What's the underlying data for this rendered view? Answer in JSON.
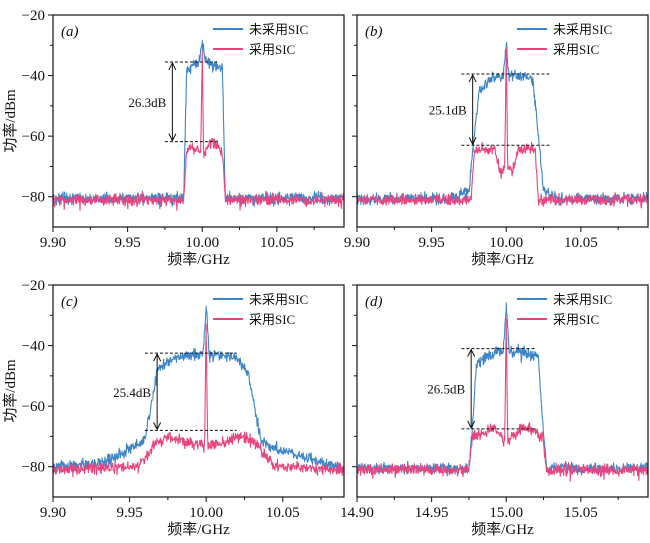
{
  "colors": {
    "without_sic": "#3d85c6",
    "with_sic": "#e8457f",
    "axis": "#111111"
  },
  "chart_data": [
    {
      "type": "line",
      "panel_label": "(a)",
      "xlabel": "频率/GHz",
      "ylabel": "功率/dBm",
      "xlim": [
        9.9,
        10.095
      ],
      "ylim": [
        -90,
        -20
      ],
      "xticks": [
        9.9,
        9.95,
        10.0,
        10.05
      ],
      "xtick_labels": [
        "9.90",
        "9.95",
        "10.00",
        "10.05"
      ],
      "yticks": [
        -20,
        -40,
        -60,
        -80
      ],
      "ytick_labels": [
        "−20",
        "−40",
        "−60",
        "−80"
      ],
      "legend_position": "top-right",
      "series": [
        {
          "name": "未采用SIC",
          "color": "#3d85c6",
          "center": 10.0,
          "floor": -80.5,
          "noise": 1.4,
          "x": [
            9.9,
            9.9875,
            9.9895,
            9.993,
            9.998,
            10.0,
            10.002,
            10.006,
            10.0135,
            10.0155,
            10.095
          ],
          "y": [
            -80.5,
            -80.5,
            -38.5,
            -37,
            -35,
            -29,
            -35,
            -36.5,
            -37.5,
            -80.5,
            -80.5
          ]
        },
        {
          "name": "采用SIC",
          "color": "#e8457f",
          "center": 10.0,
          "floor": -81,
          "noise": 1.4,
          "x": [
            9.9,
            9.9875,
            9.9895,
            9.994,
            9.9975,
            9.999,
            10.0,
            10.001,
            10.003,
            10.0065,
            10.0095,
            10.0135,
            10.0155,
            10.095
          ],
          "y": [
            -81,
            -81,
            -65,
            -63.5,
            -64,
            -66,
            -32,
            -68,
            -64,
            -61.5,
            -63,
            -65,
            -81,
            -81
          ]
        }
      ],
      "annotation": {
        "text": "26.3dB",
        "y_top": -35.5,
        "y_bottom": -61.8,
        "x_arrow": 9.98,
        "x_line_start": 9.975,
        "x_line_end": 10.01
      }
    },
    {
      "type": "line",
      "panel_label": "(b)",
      "xlabel": "频率/GHz",
      "ylabel": "",
      "xlim": [
        9.9,
        10.095
      ],
      "ylim": [
        -90,
        -20
      ],
      "xticks": [
        9.9,
        9.95,
        10.0,
        10.05
      ],
      "xtick_labels": [
        "9.90",
        "9.95",
        "10.00",
        "10.05"
      ],
      "yticks": [
        -20,
        -40,
        -60,
        -80
      ],
      "ytick_labels": [
        "",
        "",
        "",
        ""
      ],
      "legend_position": "top-right",
      "series": [
        {
          "name": "未采用SIC",
          "color": "#3d85c6",
          "center": 10.0,
          "floor": -80.5,
          "noise": 1.4,
          "x": [
            9.9,
            9.965,
            9.975,
            9.9785,
            9.982,
            9.99,
            9.998,
            10.0,
            10.002,
            10.01,
            10.018,
            10.0215,
            10.025,
            10.035,
            10.095
          ],
          "y": [
            -80.5,
            -80.5,
            -78,
            -60,
            -45,
            -41,
            -40,
            -30,
            -40,
            -40,
            -42,
            -60,
            -78,
            -80.5,
            -80.5
          ]
        },
        {
          "name": "采用SIC",
          "color": "#e8457f",
          "center": 10.0,
          "floor": -81,
          "noise": 1.4,
          "x": [
            9.9,
            9.9765,
            9.9785,
            9.985,
            9.992,
            9.996,
            9.999,
            10.0,
            10.001,
            10.004,
            10.008,
            10.015,
            10.0195,
            10.0215,
            10.095
          ],
          "y": [
            -81,
            -81,
            -65,
            -64,
            -64,
            -72,
            -70,
            -31,
            -70,
            -72,
            -64,
            -64,
            -65,
            -81,
            -81
          ]
        }
      ],
      "annotation": {
        "text": "25.1dB",
        "y_top": -39.5,
        "y_bottom": -63.0,
        "x_arrow": 9.9775,
        "x_line_start": 9.97,
        "x_line_end": 10.03
      }
    },
    {
      "type": "line",
      "panel_label": "(c)",
      "xlabel": "频率/GHz",
      "ylabel": "功率/dBm",
      "xlim": [
        9.9,
        10.09
      ],
      "ylim": [
        -90,
        -20
      ],
      "xticks": [
        9.9,
        9.95,
        10.0,
        10.05
      ],
      "xtick_labels": [
        "9.90",
        "9.95",
        "10.00",
        "10.05"
      ],
      "yticks": [
        -20,
        -40,
        -60,
        -80
      ],
      "ytick_labels": [
        "−20",
        "−40",
        "−60",
        "−80"
      ],
      "legend_position": "top-right",
      "series": [
        {
          "name": "未采用SIC",
          "color": "#3d85c6",
          "center": 10.0,
          "floor": -80.5,
          "noise": 1.4,
          "x": [
            9.9,
            9.93,
            9.95,
            9.96,
            9.964,
            9.968,
            9.98,
            9.998,
            10.0,
            10.002,
            10.02,
            10.028,
            10.032,
            10.036,
            10.045,
            10.09
          ],
          "y": [
            -80.5,
            -79,
            -74,
            -71,
            -60,
            -48,
            -44,
            -43,
            -27,
            -43,
            -44,
            -50,
            -62,
            -71,
            -74,
            -80.5
          ]
        },
        {
          "name": "采用SIC",
          "color": "#e8457f",
          "center": 10.0,
          "floor": -81,
          "noise": 1.4,
          "x": [
            9.9,
            9.955,
            9.962,
            9.966,
            9.975,
            9.99,
            9.999,
            10.0,
            10.001,
            10.01,
            10.025,
            10.034,
            10.038,
            10.045,
            10.09
          ],
          "y": [
            -81,
            -80,
            -76,
            -73,
            -70,
            -72,
            -73,
            -33,
            -73,
            -72,
            -70,
            -73,
            -76,
            -80,
            -81
          ]
        }
      ],
      "annotation": {
        "text": "25.4dB",
        "y_top": -42.5,
        "y_bottom": -68.0,
        "x_arrow": 9.968,
        "x_line_start": 9.96,
        "x_line_end": 10.02
      }
    },
    {
      "type": "line",
      "panel_label": "(d)",
      "xlabel": "频率/GHz",
      "ylabel": "",
      "xlim": [
        14.9,
        15.095
      ],
      "ylim": [
        -90,
        -20
      ],
      "xticks": [
        14.9,
        14.95,
        15.0,
        15.05
      ],
      "xtick_labels": [
        "",
        "14.95",
        "15.00",
        "15.05"
      ],
      "yticks": [
        -20,
        -40,
        -60,
        -80
      ],
      "ytick_labels": [
        "",
        "",
        "",
        ""
      ],
      "legend_position": "top-right",
      "series": [
        {
          "name": "未采用SIC",
          "color": "#3d85c6",
          "center": 15.0,
          "floor": -80.5,
          "noise": 1.4,
          "x": [
            14.9,
            14.975,
            14.9775,
            14.98,
            14.99,
            14.998,
            15.0,
            15.002,
            15.01,
            15.0215,
            15.0245,
            15.027,
            15.095
          ],
          "y": [
            -80.5,
            -80.5,
            -66,
            -46,
            -42.5,
            -42,
            -27,
            -42,
            -42,
            -44,
            -66,
            -80.5,
            -80.5
          ]
        },
        {
          "name": "采用SIC",
          "color": "#e8457f",
          "center": 15.0,
          "floor": -81,
          "noise": 1.4,
          "x": [
            14.9,
            14.975,
            14.9775,
            14.985,
            14.992,
            14.997,
            14.999,
            15.0,
            15.001,
            15.004,
            15.01,
            15.018,
            15.0245,
            15.027,
            15.095
          ],
          "y": [
            -81,
            -81,
            -70,
            -69,
            -67,
            -70,
            -72,
            -31,
            -72,
            -70,
            -67,
            -68,
            -70,
            -81,
            -81
          ]
        }
      ],
      "annotation": {
        "text": "26.5dB",
        "y_top": -41.0,
        "y_bottom": -67.5,
        "x_arrow": 14.9765,
        "x_line_start": 14.97,
        "x_line_end": 15.02
      }
    }
  ]
}
